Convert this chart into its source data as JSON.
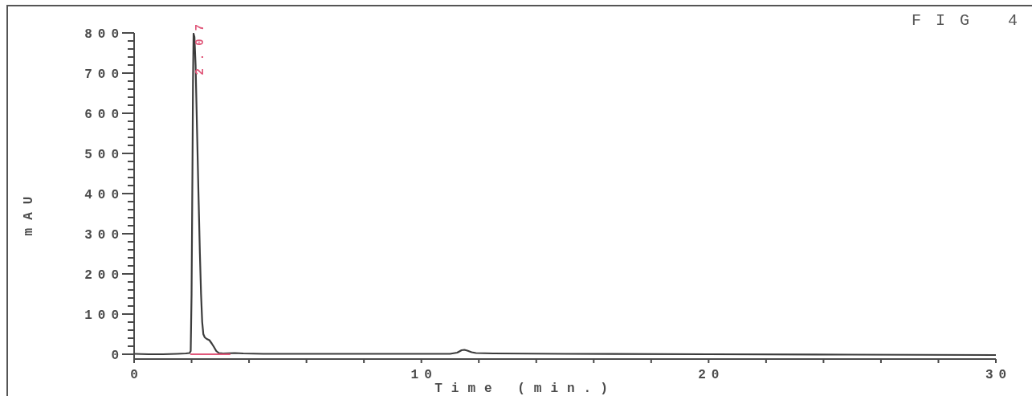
{
  "chart_data": {
    "type": "line",
    "title": "FIG 4",
    "xlabel": "Time (min.)",
    "ylabel": "mAU",
    "x": [
      0,
      0.5,
      1,
      1.5,
      1.8,
      1.93,
      1.97,
      2.0,
      2.03,
      2.05,
      2.07,
      2.1,
      2.14,
      2.19,
      2.24,
      2.29,
      2.33,
      2.37,
      2.41,
      2.46,
      2.53,
      2.62,
      2.7,
      2.78,
      2.86,
      2.95,
      3.1,
      3.5,
      3.8,
      4.5,
      6,
      8,
      10,
      11,
      11.25,
      11.4,
      11.5,
      11.6,
      11.75,
      11.9,
      12.5,
      15,
      20,
      25,
      30
    ],
    "series": [
      {
        "color": "#3c3c3c",
        "values": [
          1,
          0,
          0,
          1,
          2,
          3,
          8,
          150,
          450,
          680,
          798,
          790,
          720,
          560,
          400,
          250,
          150,
          80,
          50,
          42,
          38,
          35,
          27,
          18,
          8,
          3,
          2,
          3,
          2,
          1,
          1,
          1,
          1,
          1,
          4,
          10,
          11,
          9,
          5,
          3,
          2,
          1,
          0,
          -1,
          -2
        ]
      },
      {
        "color": "#e0587a",
        "x": [
          1.98,
          3.33
        ],
        "values": [
          0,
          0
        ]
      }
    ],
    "xlim": [
      0,
      30
    ],
    "ylim": [
      -12,
      800
    ],
    "xticks": [
      0,
      {
        "value": 2,
        "label": null
      },
      {
        "value": 4,
        "label": null
      },
      {
        "value": 6,
        "label": null
      },
      {
        "value": 8,
        "label": null
      },
      10,
      {
        "value": 12,
        "label": null
      },
      {
        "value": 14,
        "label": null
      },
      {
        "value": 16,
        "label": null
      },
      {
        "value": 18,
        "label": null
      },
      20,
      {
        "value": 22,
        "label": null
      },
      {
        "value": 24,
        "label": null
      },
      {
        "value": 26,
        "label": null
      },
      {
        "value": 28,
        "label": null
      },
      30
    ],
    "yticks": [
      0,
      {
        "value": 20,
        "label": null
      },
      {
        "value": 40,
        "label": null
      },
      {
        "value": 60,
        "label": null
      },
      {
        "value": 80,
        "label": null
      },
      100,
      {
        "value": 120,
        "label": null
      },
      {
        "value": 140,
        "label": null
      },
      {
        "value": 160,
        "label": null
      },
      {
        "value": 180,
        "label": null
      },
      200,
      {
        "value": 220,
        "label": null
      },
      {
        "value": 240,
        "label": null
      },
      {
        "value": 260,
        "label": null
      },
      {
        "value": 280,
        "label": null
      },
      300,
      {
        "value": 320,
        "label": null
      },
      {
        "value": 340,
        "label": null
      },
      {
        "value": 360,
        "label": null
      },
      {
        "value": 380,
        "label": null
      },
      400,
      {
        "value": 420,
        "label": null
      },
      {
        "value": 440,
        "label": null
      },
      {
        "value": 460,
        "label": null
      },
      {
        "value": 480,
        "label": null
      },
      500,
      {
        "value": 520,
        "label": null
      },
      {
        "value": 540,
        "label": null
      },
      {
        "value": 560,
        "label": null
      },
      {
        "value": 580,
        "label": null
      },
      600,
      {
        "value": 620,
        "label": null
      },
      {
        "value": 640,
        "label": null
      },
      {
        "value": 660,
        "label": null
      },
      {
        "value": 680,
        "label": null
      },
      700,
      {
        "value": 720,
        "label": null
      },
      {
        "value": 740,
        "label": null
      },
      {
        "value": 760,
        "label": null
      },
      {
        "value": 780,
        "label": null
      },
      800
    ],
    "annotations": [
      {
        "text": "2.07",
        "x": 2.07,
        "y": 798
      }
    ],
    "marker": "none",
    "line_style": "solid"
  }
}
